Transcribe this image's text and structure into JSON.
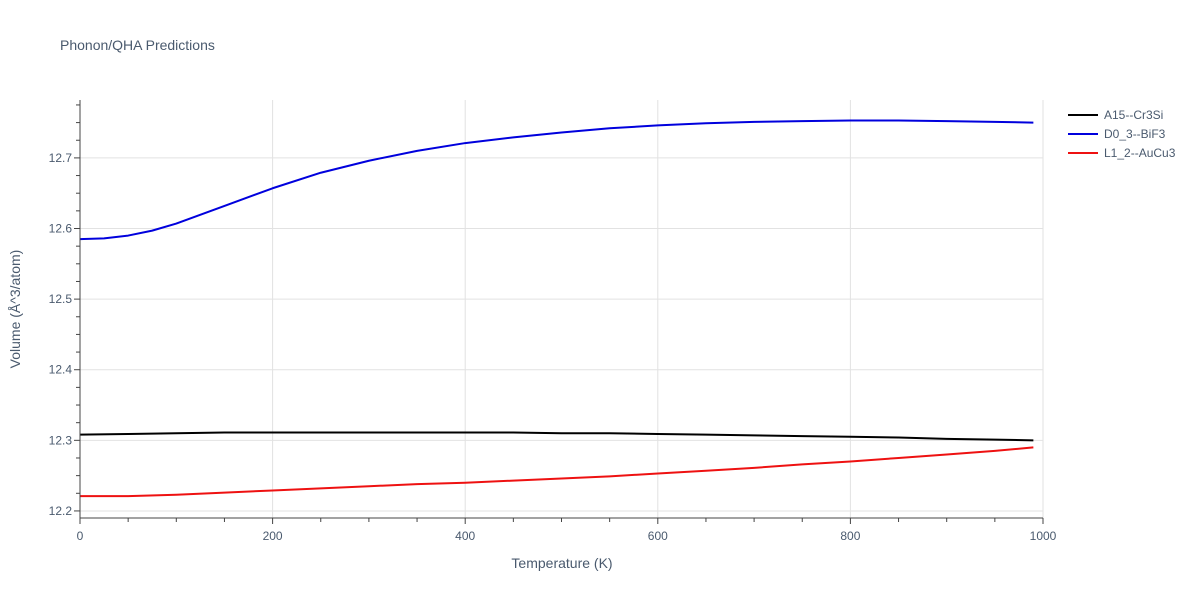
{
  "chart_data": {
    "type": "line",
    "title": "Phonon/QHA Predictions",
    "xlabel": "Temperature (K)",
    "ylabel": "Volume (Å^3/atom)",
    "xlim": [
      0,
      1000
    ],
    "ylim": [
      12.19,
      12.782
    ],
    "xticks": [
      0,
      200,
      400,
      600,
      800,
      1000
    ],
    "yticks": [
      12.2,
      12.3,
      12.4,
      12.5,
      12.6,
      12.7
    ],
    "xtick_labels": [
      "0",
      "200",
      "400",
      "600",
      "800",
      "1000"
    ],
    "ytick_labels": [
      "12.2",
      "12.3",
      "12.4",
      "12.5",
      "12.6",
      "12.7"
    ],
    "grid": true,
    "legend_position": "top-right",
    "series": [
      {
        "name": "A15--Cr3Si",
        "color": "#000000",
        "x": [
          0,
          50,
          100,
          150,
          200,
          250,
          300,
          350,
          400,
          450,
          500,
          550,
          600,
          650,
          700,
          750,
          800,
          850,
          900,
          950,
          990
        ],
        "y": [
          12.308,
          12.309,
          12.31,
          12.311,
          12.311,
          12.311,
          12.311,
          12.311,
          12.311,
          12.311,
          12.31,
          12.31,
          12.309,
          12.308,
          12.307,
          12.306,
          12.305,
          12.304,
          12.302,
          12.301,
          12.3
        ]
      },
      {
        "name": "D0_3--BiF3",
        "color": "#0000dd",
        "x": [
          0,
          25,
          50,
          75,
          100,
          150,
          200,
          250,
          300,
          350,
          400,
          450,
          500,
          550,
          600,
          650,
          700,
          750,
          800,
          850,
          900,
          950,
          990
        ],
        "y": [
          12.585,
          12.586,
          12.59,
          12.597,
          12.607,
          12.632,
          12.657,
          12.679,
          12.696,
          12.71,
          12.721,
          12.729,
          12.736,
          12.742,
          12.746,
          12.749,
          12.751,
          12.752,
          12.753,
          12.753,
          12.752,
          12.751,
          12.75
        ]
      },
      {
        "name": "L1_2--AuCu3",
        "color": "#ee1111",
        "x": [
          0,
          50,
          100,
          150,
          200,
          250,
          300,
          350,
          400,
          450,
          500,
          550,
          600,
          650,
          700,
          750,
          800,
          850,
          900,
          950,
          990
        ],
        "y": [
          12.221,
          12.221,
          12.223,
          12.226,
          12.229,
          12.232,
          12.235,
          12.238,
          12.24,
          12.243,
          12.246,
          12.249,
          12.253,
          12.257,
          12.261,
          12.266,
          12.27,
          12.275,
          12.28,
          12.285,
          12.29
        ]
      }
    ]
  }
}
